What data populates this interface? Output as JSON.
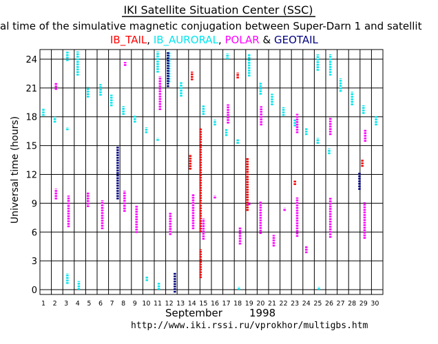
{
  "chart_data": {
    "type": "scatter",
    "title": "IKI Satellite Situation Center (SSC)",
    "subtitle": "al time of the simulative magnetic conjugation between Super-Darn 1 and satellit",
    "legend": [
      {
        "name": "IB_TAIL",
        "color": "#ff0000",
        "sep": ", "
      },
      {
        "name": "IB_AURORAL",
        "color": "#00e5ee",
        "sep": ", "
      },
      {
        "name": "POLAR",
        "color": "#ff00ff",
        "sep": " & "
      },
      {
        "name": "GEOTAIL",
        "color": "#00007f",
        "sep": ""
      }
    ],
    "ylabel": "Universal time  (hours)",
    "xlabel": "September",
    "xlabel_year": "1998",
    "url": "http://www.iki.rssi.ru/vprokhor/multigbs.htm",
    "xlim": [
      1,
      31
    ],
    "ylim": [
      -0.5,
      25
    ],
    "yticks": [
      "0",
      "3",
      "6",
      "9",
      "12",
      "15",
      "18",
      "21",
      "24"
    ],
    "xticks": [
      "1",
      "2",
      "3",
      "4",
      "5",
      "6",
      "7",
      "8",
      "9",
      "10",
      "11",
      "12",
      "13",
      "14",
      "15",
      "16",
      "17",
      "18",
      "19",
      "20",
      "21",
      "22",
      "23",
      "24",
      "25",
      "26",
      "27",
      "28",
      "29",
      "30"
    ],
    "grid": true,
    "series": [
      {
        "name": "IB_TAIL",
        "color": "#ff0000",
        "segments": [
          [
            14.15,
            12.5,
            14.1
          ],
          [
            14.3,
            21.8,
            22.7
          ],
          [
            15.05,
            1.2,
            4.2
          ],
          [
            15.05,
            6.0,
            16.8
          ],
          [
            18.3,
            22.0,
            22.6
          ],
          [
            19.15,
            8.2,
            13.7
          ],
          [
            23.3,
            10.9,
            11.4
          ],
          [
            29.2,
            12.8,
            13.6
          ]
        ]
      },
      {
        "name": "IB_AURORAL",
        "color": "#00e5ee",
        "segments": [
          [
            1.3,
            18.1,
            18.9
          ],
          [
            2.3,
            17.4,
            18.0
          ],
          [
            3.4,
            23.8,
            24.8
          ],
          [
            3.4,
            16.6,
            16.9
          ],
          [
            3.4,
            0.6,
            1.7
          ],
          [
            4.3,
            22.3,
            24.8
          ],
          [
            4.4,
            0.0,
            0.9
          ],
          [
            5.2,
            20.0,
            21.1
          ],
          [
            6.3,
            20.2,
            21.4
          ],
          [
            7.25,
            19.1,
            20.3
          ],
          [
            8.3,
            18.2,
            19.1
          ],
          [
            9.3,
            17.4,
            18.2
          ],
          [
            10.3,
            16.3,
            16.9
          ],
          [
            10.35,
            0.9,
            1.4
          ],
          [
            11.3,
            22.6,
            24.8
          ],
          [
            11.3,
            15.5,
            15.8
          ],
          [
            11.4,
            0.0,
            0.8
          ],
          [
            12.3,
            21.6,
            24.8
          ],
          [
            13.35,
            20.1,
            21.6
          ],
          [
            15.3,
            18.2,
            19.2
          ],
          [
            16.3,
            17.1,
            17.7
          ],
          [
            17.3,
            16.0,
            16.8
          ],
          [
            17.4,
            24.0,
            24.6
          ],
          [
            18.3,
            15.2,
            15.7
          ],
          [
            18.4,
            0.0,
            0.3
          ],
          [
            19.3,
            22.2,
            24.6
          ],
          [
            20.3,
            20.3,
            21.6
          ],
          [
            21.3,
            19.2,
            20.4
          ],
          [
            22.3,
            18.1,
            19.0
          ],
          [
            23.3,
            17.0,
            17.8
          ],
          [
            24.3,
            16.1,
            16.8
          ],
          [
            25.3,
            15.2,
            15.8
          ],
          [
            25.3,
            22.8,
            24.5
          ],
          [
            25.4,
            0.0,
            0.3
          ],
          [
            26.3,
            14.1,
            14.7
          ],
          [
            26.4,
            22.3,
            24.5
          ],
          [
            27.3,
            20.6,
            22.0
          ],
          [
            28.3,
            19.2,
            20.6
          ],
          [
            29.3,
            18.3,
            19.2
          ],
          [
            30.4,
            17.1,
            18.1
          ]
        ]
      },
      {
        "name": "POLAR",
        "color": "#ff00ff",
        "segments": [
          [
            2.4,
            20.8,
            21.6
          ],
          [
            2.4,
            9.4,
            10.5
          ],
          [
            3.5,
            6.5,
            9.8
          ],
          [
            5.2,
            8.6,
            10.2
          ],
          [
            6.45,
            6.3,
            9.3
          ],
          [
            8.4,
            8.1,
            10.3
          ],
          [
            8.45,
            23.3,
            23.7
          ],
          [
            9.45,
            5.9,
            8.8
          ],
          [
            11.5,
            18.7,
            22.2
          ],
          [
            12.4,
            5.7,
            8.0
          ],
          [
            14.4,
            6.3,
            10.0
          ],
          [
            15.3,
            5.2,
            7.4
          ],
          [
            16.3,
            9.5,
            9.8
          ],
          [
            17.45,
            17.3,
            19.3
          ],
          [
            18.5,
            4.7,
            6.5
          ],
          [
            19.3,
            8.8,
            9.1
          ],
          [
            20.3,
            5.8,
            9.2
          ],
          [
            20.35,
            17.1,
            19.1
          ],
          [
            21.45,
            4.5,
            5.7
          ],
          [
            22.4,
            8.2,
            8.5
          ],
          [
            23.5,
            5.5,
            9.6
          ],
          [
            23.5,
            16.3,
            18.3
          ],
          [
            24.3,
            3.8,
            4.6
          ],
          [
            26.4,
            5.4,
            9.6
          ],
          [
            26.4,
            16.1,
            17.9
          ],
          [
            29.4,
            5.3,
            9.1
          ],
          [
            29.45,
            15.4,
            16.7
          ]
        ]
      },
      {
        "name": "GEOTAIL",
        "color": "#00007f",
        "segments": [
          [
            7.8,
            9.4,
            14.9
          ],
          [
            12.2,
            21.1,
            24.8
          ],
          [
            12.8,
            -0.3,
            1.8
          ],
          [
            28.95,
            10.4,
            12.2
          ]
        ]
      }
    ]
  }
}
